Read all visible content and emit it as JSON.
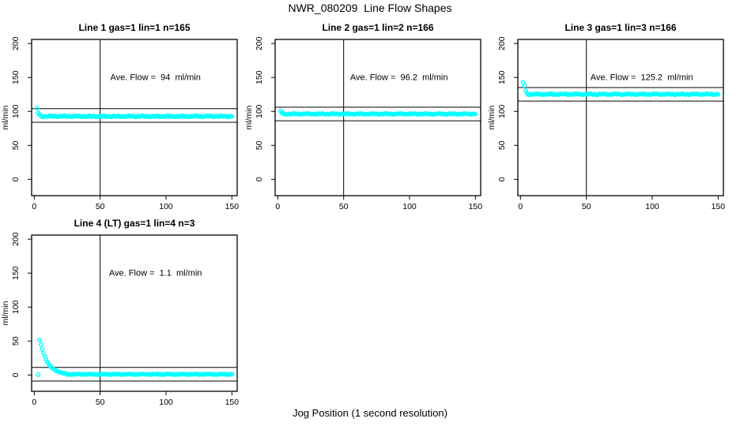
{
  "figure": {
    "title": "NWR_080209  Line Flow Shapes",
    "x_caption": "Jog Position (1 second resolution)",
    "point_color": "#00FFFF",
    "line_color": "#000000"
  },
  "chart_data": [
    {
      "type": "scatter",
      "title": "Line 1 gas=1 lin=1 n=165",
      "annotation": "Ave. Flow =  94  ml/min",
      "ave_flow": 94,
      "n": 165,
      "ylabel": "ml/min",
      "x_ticks": [
        0,
        50,
        100,
        150
      ],
      "y_ticks": [
        0,
        50,
        100,
        150,
        200
      ],
      "xlim": [
        -2,
        154
      ],
      "ylim": [
        -24,
        206
      ],
      "vline_x": 50,
      "hlines": [
        104,
        84
      ],
      "points_head": [
        [
          2,
          105
        ],
        [
          3,
          98
        ],
        [
          4,
          95.5
        ],
        [
          5,
          93.8
        ]
      ],
      "steady": {
        "from": 6,
        "to": 150,
        "value": 92.8,
        "jitter": 1.0
      }
    },
    {
      "type": "scatter",
      "title": "Line 2 gas=1 lin=2 n=166",
      "annotation": "Ave. Flow =  96.2  ml/min",
      "ave_flow": 96.2,
      "n": 166,
      "ylabel": "ml/min",
      "x_ticks": [
        0,
        50,
        100,
        150
      ],
      "y_ticks": [
        0,
        50,
        100,
        150,
        200
      ],
      "xlim": [
        -2,
        154
      ],
      "ylim": [
        -24,
        206
      ],
      "vline_x": 50,
      "hlines": [
        106.2,
        86.2
      ],
      "points_head": [
        [
          2,
          101
        ],
        [
          3,
          98.2
        ]
      ],
      "steady": {
        "from": 4,
        "to": 150,
        "value": 96.3,
        "jitter": 0.9
      }
    },
    {
      "type": "scatter",
      "title": "Line 3 gas=1 lin=3 n=166",
      "annotation": "Ave. Flow =  125.2  ml/min",
      "ave_flow": 125.2,
      "n": 166,
      "ylabel": "ml/min",
      "x_ticks": [
        0,
        50,
        100,
        150
      ],
      "y_ticks": [
        0,
        50,
        100,
        150,
        200
      ],
      "xlim": [
        -2,
        154
      ],
      "ylim": [
        -24,
        206
      ],
      "vline_x": 50,
      "hlines": [
        135.2,
        115.2
      ],
      "points_head": [
        [
          2,
          143
        ],
        [
          3,
          138
        ],
        [
          4,
          130.5
        ],
        [
          5,
          127
        ]
      ],
      "steady": {
        "from": 6,
        "to": 150,
        "value": 125.3,
        "jitter": 1.0
      }
    },
    {
      "type": "scatter",
      "title": "Line 4 (LT) gas=1 lin=4 n=3",
      "annotation": "Ave. Flow =  1.1  ml/min",
      "ave_flow": 1.1,
      "n": 3,
      "ylabel": "ml/min",
      "x_ticks": [
        0,
        50,
        100,
        150
      ],
      "y_ticks": [
        0,
        50,
        100,
        150,
        200
      ],
      "xlim": [
        -2,
        154
      ],
      "ylim": [
        -24,
        206
      ],
      "vline_x": 50,
      "hlines": [
        11.1,
        -8.9
      ],
      "points_head": [
        [
          3,
          0.5
        ],
        [
          4,
          52
        ],
        [
          5,
          45
        ],
        [
          6,
          38
        ],
        [
          7,
          32
        ],
        [
          8,
          27
        ],
        [
          9,
          22.5
        ],
        [
          10,
          19
        ],
        [
          11,
          16
        ],
        [
          12,
          13.5
        ],
        [
          13,
          11.5
        ],
        [
          14,
          9.8
        ],
        [
          15,
          8.3
        ],
        [
          16,
          7
        ],
        [
          17,
          6
        ],
        [
          18,
          5.1
        ],
        [
          19,
          4.4
        ],
        [
          20,
          3.8
        ],
        [
          21,
          3.3
        ],
        [
          22,
          2.9
        ],
        [
          23,
          2.5
        ],
        [
          24,
          2.2
        ]
      ],
      "steady": {
        "from": 25,
        "to": 150,
        "value": 1.0,
        "jitter": 0.7
      }
    }
  ]
}
